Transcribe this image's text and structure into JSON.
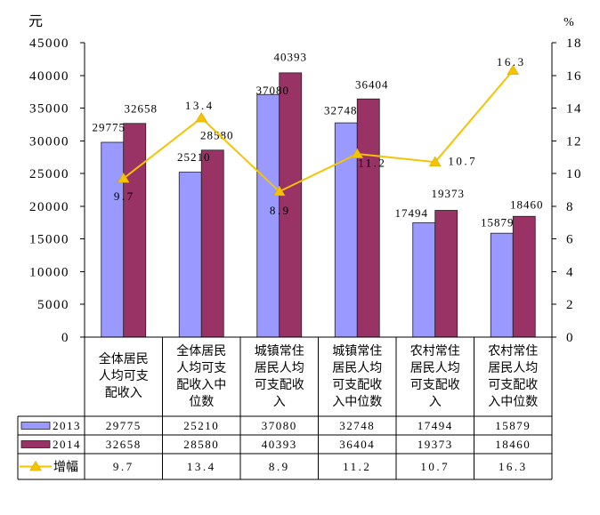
{
  "chart_data": {
    "type": "bar",
    "categories": [
      "全体居民人均可支配收入",
      "全体居民人均可支配收入中位数",
      "城镇常住居民人均可支配收入",
      "城镇常住居民人均可支配收入中位数",
      "农村常住居民人均可支配收入",
      "农村常住居民人均可支配收入中位数"
    ],
    "series": [
      {
        "name": "2013",
        "values": [
          29775,
          25210,
          37080,
          32748,
          17494,
          15879
        ],
        "color": "#9999FF"
      },
      {
        "name": "2014",
        "values": [
          32658,
          28580,
          40393,
          36404,
          19373,
          18460
        ],
        "color": "#993366"
      }
    ],
    "line_series": {
      "name": "增幅",
      "values": [
        9.7,
        13.4,
        8.9,
        11.2,
        10.7,
        16.3
      ],
      "color": "#F5C400"
    },
    "ylabel": "元",
    "ylim": [
      0,
      45000
    ],
    "yticks": [
      0,
      5000,
      10000,
      15000,
      20000,
      25000,
      30000,
      35000,
      40000,
      45000
    ],
    "y2label": "%",
    "y2lim": [
      0,
      18
    ],
    "y2ticks": [
      0,
      2,
      4,
      6,
      8,
      10,
      12,
      14,
      16,
      18
    ]
  }
}
